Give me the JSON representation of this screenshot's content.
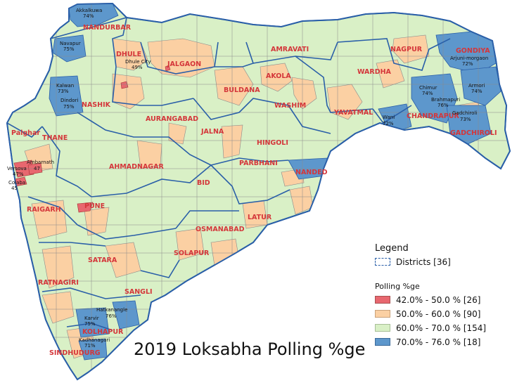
{
  "title": "2019 Loksabha Polling %ge",
  "legend": {
    "heading": "Legend",
    "boundary_label": "Districts [36]",
    "section_label": "Polling %ge",
    "classes": [
      {
        "label": "42.0% - 50.0 % [26]",
        "color": "#e8676f"
      },
      {
        "label": "50.0% - 60.0 % [90]",
        "color": "#fbd0a3"
      },
      {
        "label": "60.0% - 70.0 % [154]",
        "color": "#d9f0c6"
      },
      {
        "label": "70.0% - 76.0 % [18]",
        "color": "#5d97cc"
      }
    ]
  },
  "colors": {
    "boundary": "#2a5fa8",
    "taluka_line": "#8a8a8a",
    "district_label": "#d4363a"
  },
  "districts": [
    "NANDURBAR",
    "DHULE",
    "JALGAON",
    "AMRAVATI",
    "NAGPUR",
    "GONDIYA",
    "WARDHA",
    "AKOLA",
    "BULDANA",
    "NASHIK",
    "AURANGABAD",
    "WASHIM",
    "YAVATMAL",
    "CHANDRAPUR",
    "GADCHIROLI",
    "Palghar",
    "THANE",
    "JALNA",
    "HINGOLI",
    "AHMADNAGAR",
    "PARBHANI",
    "NANDED",
    "BID",
    "RAIGARH",
    "PUNE",
    "LATUR",
    "OSMANABAD",
    "SATARA",
    "SOLAPUR",
    "RATNAGIRI",
    "SANGLI",
    "KOLHAPUR",
    "SINDHUDURG"
  ],
  "talukas": [
    {
      "name": "Akkalkuwa",
      "value": "74%"
    },
    {
      "name": "Navapur",
      "value": "75%"
    },
    {
      "name": "Dhule City",
      "value": "49%"
    },
    {
      "name": "Kalwan",
      "value": "73%"
    },
    {
      "name": "Dindori",
      "value": "75%"
    },
    {
      "name": "Arjuni-morgaon",
      "value": "72%"
    },
    {
      "name": "Chimur",
      "value": "74%"
    },
    {
      "name": "Armori",
      "value": "74%"
    },
    {
      "name": "Brahmapuri",
      "value": "76%"
    },
    {
      "name": "Gadchiroli",
      "value": "73%"
    },
    {
      "name": "Wani",
      "value": "72%"
    },
    {
      "name": "Ambarnath",
      "value": "47"
    },
    {
      "name": "Versova",
      "value": "47%"
    },
    {
      "name": "Colaba",
      "value": "45"
    },
    {
      "name": "Hatkanangle",
      "value": "76%"
    },
    {
      "name": "Karvir",
      "value": "75%"
    },
    {
      "name": "Kadhanagari",
      "value": "71%"
    }
  ]
}
